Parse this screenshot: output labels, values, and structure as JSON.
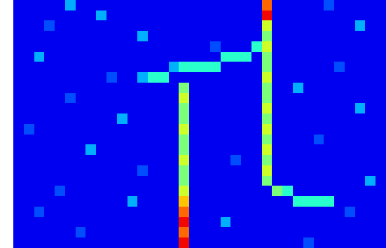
{
  "chart_data": {
    "type": "heatmap",
    "tick_labels": false,
    "value_range": [
      0,
      10
    ],
    "cells": [
      [
        1,
        1,
        1,
        1,
        1,
        3,
        1,
        1,
        1,
        1,
        1,
        1,
        1,
        1,
        1,
        1,
        1,
        1,
        1,
        1,
        1,
        1,
        1,
        1,
        8,
        1,
        1,
        1,
        1,
        1,
        2,
        1,
        1,
        1,
        1,
        1
      ],
      [
        1,
        1,
        1,
        1,
        1,
        1,
        1,
        1,
        3,
        1,
        1,
        1,
        1,
        1,
        1,
        1,
        1,
        1,
        1,
        1,
        1,
        1,
        1,
        1,
        9,
        1,
        1,
        1,
        1,
        1,
        1,
        1,
        1,
        1,
        1,
        1
      ],
      [
        1,
        1,
        1,
        2,
        1,
        1,
        1,
        1,
        1,
        1,
        1,
        1,
        1,
        1,
        1,
        1,
        1,
        1,
        1,
        1,
        1,
        1,
        1,
        1,
        6,
        1,
        1,
        1,
        1,
        1,
        1,
        1,
        1,
        3,
        1,
        1
      ],
      [
        1,
        1,
        1,
        1,
        1,
        1,
        1,
        1,
        1,
        1,
        1,
        1,
        3,
        1,
        1,
        1,
        1,
        1,
        1,
        1,
        1,
        1,
        1,
        1,
        5,
        1,
        1,
        1,
        1,
        1,
        1,
        1,
        1,
        1,
        1,
        1
      ],
      [
        1,
        1,
        1,
        1,
        1,
        1,
        1,
        1,
        1,
        1,
        1,
        1,
        1,
        1,
        1,
        1,
        1,
        1,
        1,
        2,
        1,
        1,
        1,
        4,
        6,
        1,
        1,
        1,
        1,
        1,
        1,
        1,
        1,
        1,
        1,
        1
      ],
      [
        1,
        1,
        3,
        1,
        1,
        1,
        1,
        1,
        1,
        1,
        1,
        1,
        1,
        1,
        1,
        1,
        1,
        1,
        1,
        1,
        4,
        4,
        4,
        1,
        5,
        1,
        1,
        1,
        1,
        1,
        1,
        1,
        1,
        1,
        1,
        1
      ],
      [
        1,
        1,
        1,
        1,
        1,
        1,
        1,
        1,
        1,
        1,
        1,
        1,
        1,
        1,
        1,
        3,
        4,
        4,
        4,
        4,
        1,
        1,
        1,
        1,
        5,
        1,
        1,
        1,
        1,
        1,
        1,
        2,
        1,
        1,
        1,
        1
      ],
      [
        1,
        1,
        1,
        1,
        1,
        1,
        1,
        1,
        1,
        2,
        1,
        1,
        3,
        4,
        4,
        1,
        1,
        1,
        1,
        1,
        1,
        1,
        1,
        1,
        6,
        1,
        1,
        1,
        1,
        1,
        1,
        1,
        1,
        1,
        1,
        1
      ],
      [
        1,
        1,
        1,
        1,
        1,
        1,
        1,
        1,
        1,
        1,
        1,
        1,
        1,
        1,
        1,
        1,
        5,
        1,
        1,
        1,
        1,
        1,
        1,
        1,
        5,
        1,
        1,
        3,
        1,
        1,
        1,
        1,
        1,
        1,
        1,
        1
      ],
      [
        1,
        1,
        1,
        1,
        1,
        2,
        1,
        1,
        1,
        1,
        1,
        1,
        1,
        1,
        1,
        1,
        6,
        1,
        1,
        1,
        1,
        1,
        1,
        1,
        5,
        1,
        1,
        1,
        1,
        1,
        1,
        1,
        1,
        1,
        1,
        1
      ],
      [
        1,
        1,
        1,
        1,
        1,
        1,
        1,
        1,
        1,
        1,
        1,
        1,
        1,
        1,
        1,
        1,
        5,
        1,
        1,
        1,
        1,
        1,
        1,
        1,
        6,
        1,
        1,
        1,
        1,
        1,
        1,
        1,
        1,
        3,
        1,
        1
      ],
      [
        1,
        1,
        1,
        1,
        1,
        1,
        1,
        1,
        1,
        1,
        3,
        1,
        1,
        1,
        1,
        1,
        5,
        1,
        1,
        1,
        1,
        1,
        1,
        1,
        5,
        1,
        1,
        1,
        1,
        1,
        1,
        1,
        1,
        1,
        1,
        1
      ],
      [
        1,
        2,
        1,
        1,
        1,
        1,
        1,
        1,
        1,
        1,
        1,
        1,
        1,
        1,
        1,
        1,
        6,
        1,
        1,
        1,
        1,
        1,
        1,
        1,
        6,
        1,
        1,
        1,
        1,
        1,
        1,
        1,
        1,
        1,
        1,
        1
      ],
      [
        1,
        1,
        1,
        1,
        1,
        1,
        1,
        1,
        1,
        1,
        1,
        1,
        1,
        1,
        1,
        1,
        5,
        1,
        1,
        1,
        1,
        1,
        1,
        1,
        5,
        1,
        1,
        1,
        1,
        2,
        1,
        1,
        1,
        1,
        1,
        1
      ],
      [
        1,
        1,
        1,
        1,
        1,
        1,
        1,
        3,
        1,
        1,
        1,
        1,
        1,
        1,
        1,
        1,
        5,
        1,
        1,
        1,
        1,
        1,
        1,
        1,
        6,
        1,
        1,
        1,
        1,
        1,
        1,
        1,
        1,
        1,
        1,
        1
      ],
      [
        1,
        1,
        1,
        1,
        1,
        1,
        1,
        1,
        1,
        1,
        1,
        1,
        1,
        1,
        1,
        1,
        6,
        1,
        1,
        1,
        1,
        2,
        1,
        1,
        5,
        1,
        1,
        1,
        1,
        1,
        1,
        1,
        1,
        1,
        1,
        1
      ],
      [
        1,
        1,
        1,
        1,
        1,
        1,
        1,
        1,
        1,
        1,
        1,
        1,
        2,
        1,
        1,
        1,
        5,
        1,
        1,
        1,
        1,
        1,
        1,
        1,
        6,
        1,
        1,
        1,
        1,
        1,
        1,
        1,
        1,
        1,
        1,
        1
      ],
      [
        1,
        1,
        1,
        1,
        1,
        1,
        1,
        1,
        1,
        1,
        1,
        1,
        1,
        1,
        1,
        1,
        5,
        1,
        1,
        1,
        1,
        1,
        1,
        1,
        5,
        1,
        1,
        1,
        1,
        1,
        1,
        1,
        1,
        1,
        3,
        1
      ],
      [
        1,
        1,
        1,
        1,
        2,
        1,
        1,
        1,
        1,
        1,
        1,
        1,
        1,
        1,
        1,
        1,
        6,
        1,
        1,
        1,
        1,
        1,
        1,
        1,
        1,
        5,
        4,
        1,
        1,
        1,
        1,
        1,
        1,
        1,
        1,
        1
      ],
      [
        1,
        1,
        1,
        1,
        1,
        1,
        1,
        1,
        1,
        1,
        1,
        3,
        1,
        1,
        1,
        1,
        7,
        1,
        1,
        1,
        1,
        1,
        1,
        1,
        1,
        1,
        1,
        4,
        4,
        4,
        4,
        1,
        1,
        1,
        1,
        1
      ],
      [
        1,
        1,
        2,
        1,
        1,
        1,
        1,
        1,
        1,
        1,
        1,
        1,
        1,
        1,
        1,
        1,
        8,
        1,
        1,
        1,
        1,
        1,
        1,
        1,
        1,
        1,
        1,
        1,
        1,
        1,
        1,
        1,
        2,
        1,
        1,
        1
      ],
      [
        1,
        1,
        1,
        1,
        1,
        1,
        1,
        1,
        1,
        1,
        1,
        1,
        1,
        1,
        1,
        1,
        9,
        1,
        1,
        1,
        3,
        1,
        1,
        1,
        1,
        1,
        1,
        1,
        1,
        1,
        1,
        1,
        1,
        1,
        1,
        1
      ],
      [
        1,
        1,
        1,
        1,
        1,
        1,
        2,
        1,
        1,
        1,
        1,
        1,
        1,
        1,
        1,
        1,
        8,
        1,
        1,
        1,
        1,
        1,
        1,
        1,
        1,
        1,
        1,
        1,
        1,
        1,
        1,
        1,
        1,
        1,
        1,
        1
      ],
      [
        1,
        1,
        1,
        1,
        1,
        1,
        1,
        1,
        1,
        1,
        1,
        1,
        1,
        1,
        1,
        1,
        9,
        1,
        1,
        1,
        1,
        1,
        1,
        1,
        1,
        1,
        1,
        1,
        2,
        1,
        1,
        1,
        1,
        1,
        1,
        1
      ]
    ]
  }
}
